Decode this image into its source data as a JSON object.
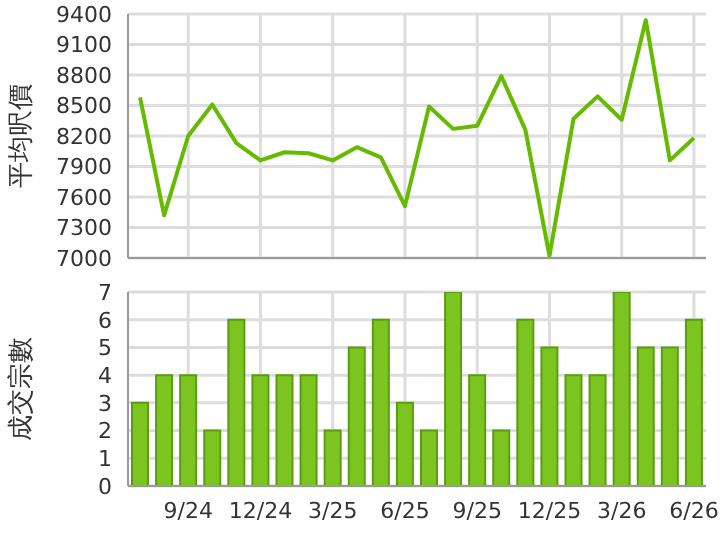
{
  "chart_data": [
    {
      "type": "line",
      "ylabel": "平均呎價",
      "categories": [
        null,
        null,
        null,
        null,
        null,
        null,
        null,
        null,
        null,
        null,
        null,
        null,
        null,
        null,
        null,
        null,
        null,
        null,
        null,
        null,
        null,
        null,
        null,
        null
      ],
      "series": [
        {
          "color": "#66bb00",
          "values": [
            8580,
            7420,
            8200,
            8510,
            8130,
            7960,
            8040,
            8030,
            7960,
            8090,
            7990,
            7510,
            8490,
            8270,
            8300,
            8790,
            8260,
            7020,
            8370,
            8590,
            8360,
            9340,
            7960,
            8180
          ]
        }
      ],
      "ylim": [
        7000,
        9400
      ],
      "yticks": [
        7000,
        7300,
        7600,
        7900,
        8200,
        8500,
        8800,
        9100,
        9400
      ],
      "grid": true,
      "tick_labels": "y",
      "marker": "none"
    },
    {
      "type": "bar",
      "ylabel": "成交宗數",
      "categories": [
        null,
        null,
        "9/24",
        null,
        null,
        "12/24",
        null,
        null,
        "3/25",
        null,
        null,
        "6/25",
        null,
        null,
        "9/25",
        null,
        null,
        "12/25",
        null,
        null,
        "3/26",
        null,
        null,
        "6/26"
      ],
      "series": [
        {
          "color": "#7cc520",
          "values": [
            3,
            4,
            4,
            2,
            6,
            4,
            4,
            4,
            2,
            5,
            6,
            3,
            2,
            7,
            4,
            2,
            6,
            5,
            4,
            4,
            7,
            5,
            5,
            6
          ]
        }
      ],
      "ylim": [
        0,
        7
      ],
      "yticks": [
        0,
        1,
        2,
        3,
        4,
        5,
        6,
        7
      ],
      "grid": true
    }
  ]
}
